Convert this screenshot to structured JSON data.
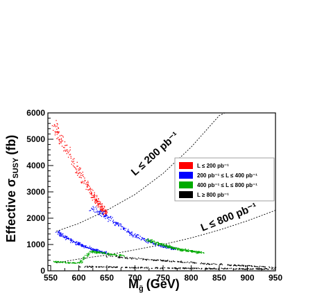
{
  "chart_data": {
    "type": "scatter",
    "xlabel": "M",
    "xlabel_sub": "g̃",
    "xlabel_unit": "(GeV)",
    "ylabel": "Effective σ",
    "ylabel_sub": "SUSY",
    "ylabel_unit": "(fb)",
    "xlim": [
      545,
      950
    ],
    "ylim": [
      0,
      6000
    ],
    "xticks": [
      550,
      600,
      650,
      700,
      750,
      800,
      850,
      900,
      950
    ],
    "yticks": [
      0,
      1000,
      2000,
      3000,
      4000,
      5000,
      6000
    ],
    "xtick_labels": [
      "550",
      "600",
      "650",
      "700",
      "750",
      "800",
      "850",
      "900",
      "950"
    ],
    "ytick_labels": [
      "0",
      "1000",
      "2000",
      "3000",
      "4000",
      "5000",
      "6000"
    ],
    "grid": false,
    "legend_position": "right",
    "series": [
      {
        "name": "L ≤ 200 pb⁻¹",
        "color": "#ff0000",
        "band": [
          [
            555,
            5600
          ],
          [
            570,
            4950
          ],
          [
            585,
            4350
          ],
          [
            600,
            3750
          ],
          [
            615,
            3200
          ],
          [
            630,
            2700
          ],
          [
            640,
            2400
          ],
          [
            650,
            2150
          ]
        ]
      },
      {
        "name": "200 pb⁻¹ ≤ L ≤ 400 pb⁻¹",
        "color": "#0000ff",
        "band": [
          [
            620,
            2400
          ],
          [
            640,
            2200
          ],
          [
            660,
            1900
          ],
          [
            680,
            1600
          ],
          [
            700,
            1350
          ],
          [
            720,
            1150
          ],
          [
            740,
            1000
          ],
          [
            760,
            900
          ],
          [
            770,
            850
          ]
        ],
        "band2": [
          [
            560,
            1500
          ],
          [
            575,
            1300
          ],
          [
            590,
            1120
          ],
          [
            605,
            980
          ],
          [
            620,
            860
          ],
          [
            635,
            760
          ],
          [
            650,
            680
          ]
        ]
      },
      {
        "name": "400 pb⁻¹ ≤ L ≤ 800 pb⁻¹",
        "color": "#00aa00",
        "band": [
          [
            720,
            1200
          ],
          [
            740,
            1050
          ],
          [
            760,
            930
          ],
          [
            780,
            830
          ],
          [
            800,
            760
          ],
          [
            820,
            700
          ]
        ],
        "band2": [
          [
            555,
            360
          ],
          [
            580,
            330
          ],
          [
            600,
            300
          ],
          [
            620,
            750
          ],
          [
            640,
            700
          ],
          [
            660,
            640
          ],
          [
            680,
            580
          ]
        ]
      },
      {
        "name": "L ≥ 800 pb⁻¹",
        "color": "#000000",
        "band": [
          [
            600,
            180
          ],
          [
            650,
            160
          ],
          [
            700,
            140
          ],
          [
            750,
            120
          ],
          [
            800,
            110
          ],
          [
            850,
            100
          ],
          [
            900,
            90
          ],
          [
            950,
            85
          ]
        ],
        "band2": [
          [
            650,
            580
          ],
          [
            700,
            480
          ],
          [
            750,
            400
          ],
          [
            800,
            330
          ],
          [
            850,
            260
          ],
          [
            900,
            200
          ],
          [
            950,
            150
          ]
        ]
      }
    ],
    "curves": [
      {
        "points": [
          [
            560,
            1500
          ],
          [
            600,
            1800
          ],
          [
            650,
            2300
          ],
          [
            700,
            2900
          ],
          [
            750,
            3700
          ],
          [
            800,
            4700
          ],
          [
            850,
            5900
          ],
          [
            860,
            6000
          ]
        ]
      },
      {
        "points": [
          [
            560,
            300
          ],
          [
            600,
            450
          ],
          [
            650,
            600
          ],
          [
            700,
            800
          ],
          [
            750,
            1000
          ],
          [
            800,
            1250
          ],
          [
            850,
            1550
          ],
          [
            900,
            1900
          ],
          [
            950,
            2300
          ]
        ]
      }
    ],
    "annotations": [
      {
        "text": "L ≤ 200 pb⁻¹",
        "x": 700,
        "y": 3600
      },
      {
        "text": "L ≤ 800 pb⁻¹",
        "x": 820,
        "y": 1500
      }
    ]
  }
}
